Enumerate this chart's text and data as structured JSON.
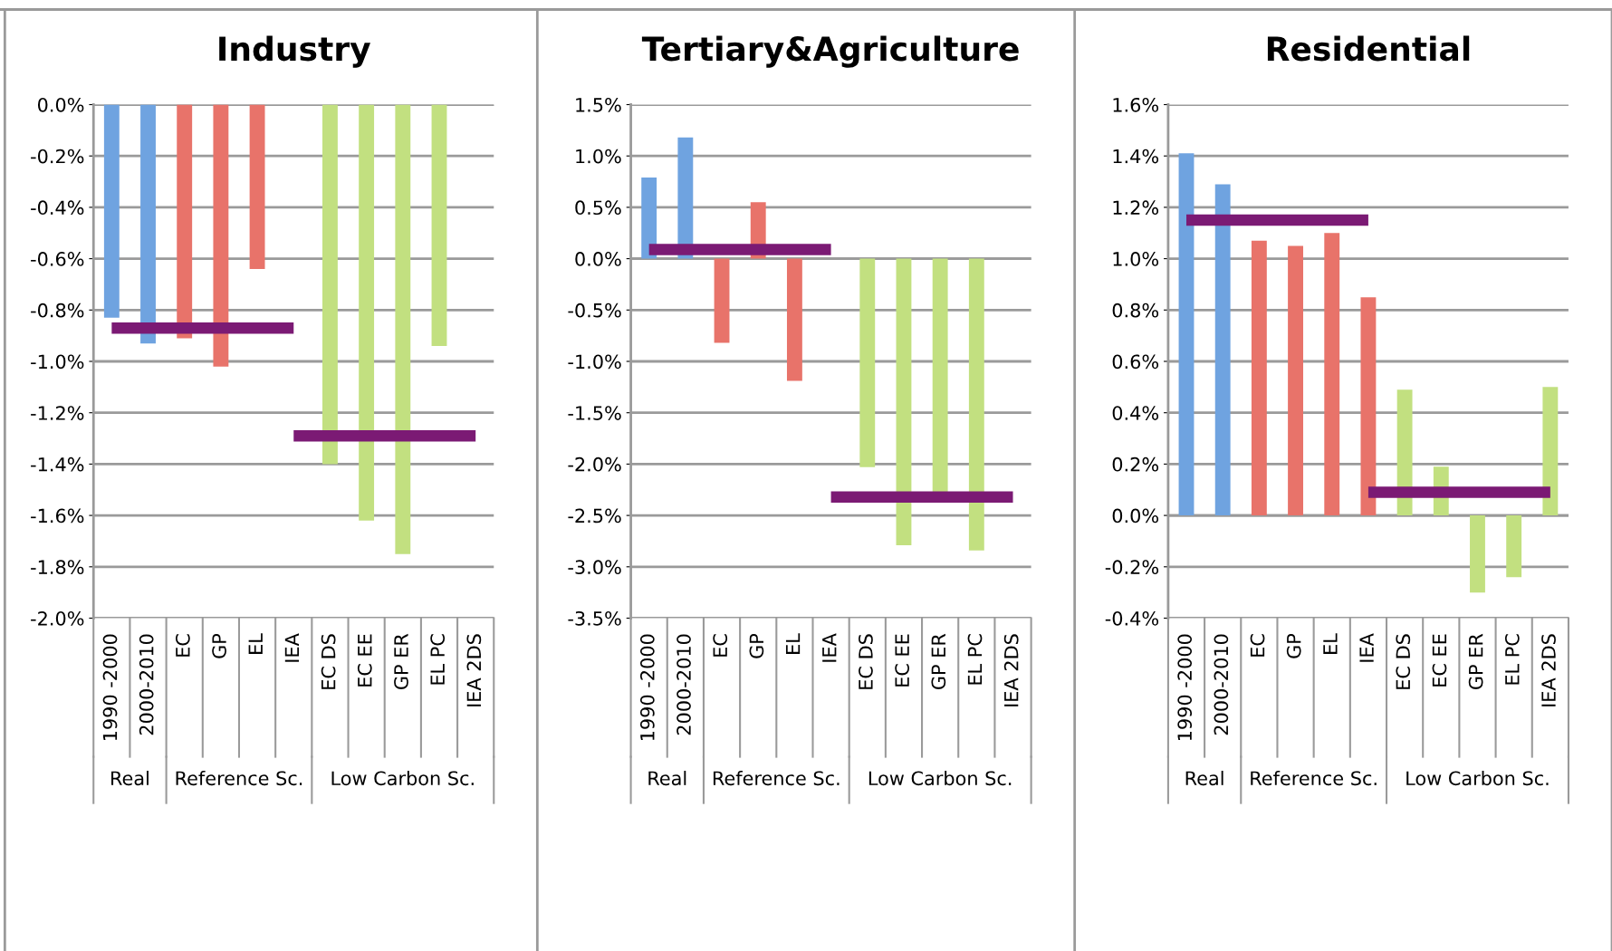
{
  "chart_data": [
    {
      "type": "bar",
      "title": "Industry",
      "categories": [
        "1990 -2000",
        "2000-2010",
        "EC",
        "GP",
        "EL",
        "IEA",
        "EC DS",
        "EC EE",
        "GP ER",
        "EL PC",
        "IEA 2DS"
      ],
      "series": [
        {
          "values": [
            -0.83,
            -0.93,
            -0.91,
            -1.02,
            -0.64,
            0,
            -1.4,
            -1.62,
            -1.75,
            -0.94,
            0
          ],
          "colors": [
            "#6fa3e0",
            "#6fa3e0",
            "#e8736a",
            "#e8736a",
            "#e8736a",
            "#e8736a",
            "#c2e080",
            "#c2e080",
            "#c2e080",
            "#c2e080",
            "#c2e080"
          ]
        },
        {
          "type": "line",
          "color": "#7b1a74",
          "values": [
            -0.87,
            -0.87,
            -0.87,
            -0.87,
            -0.87,
            -0.87,
            null,
            null,
            null,
            null,
            null
          ]
        },
        {
          "type": "line",
          "color": "#7b1a74",
          "values": [
            null,
            null,
            null,
            null,
            null,
            -1.29,
            -1.29,
            -1.29,
            -1.29,
            -1.29,
            -1.29
          ]
        }
      ],
      "ylim": [
        -2.0,
        0
      ],
      "yticks": [
        {
          "value": 0,
          "label": "0.0%"
        },
        {
          "value": -0.2,
          "label": "-0.2%"
        },
        {
          "value": -0.4,
          "label": "-0.4%"
        },
        {
          "value": -0.6,
          "label": "-0.6%"
        },
        {
          "value": -0.8,
          "label": "-0.8%"
        },
        {
          "value": -1.0,
          "label": "-1.0%"
        },
        {
          "value": -1.2,
          "label": "-1.2%"
        },
        {
          "value": -1.4,
          "label": "-1.4%"
        },
        {
          "value": -1.6,
          "label": "-1.6%"
        },
        {
          "value": -1.8,
          "label": "-1.8%"
        },
        {
          "value": -2.0,
          "label": "-2.0%"
        }
      ],
      "grid": "y",
      "annotations": [
        "Real",
        "Reference Sc.",
        "Low Carbon Sc."
      ]
    },
    {
      "type": "bar",
      "title": "Tertiary&Agriculture",
      "categories": [
        "1990 -2000",
        "2000-2010",
        "EC",
        "GP",
        "EL",
        "IEA",
        "EC DS",
        "EC EE",
        "GP ER",
        "EL PC",
        "IEA 2DS"
      ],
      "series": [
        {
          "values": [
            0.79,
            1.18,
            -0.82,
            0.55,
            -1.19,
            0,
            -2.03,
            -2.79,
            -2.28,
            -2.84,
            0
          ],
          "colors": [
            "#6fa3e0",
            "#6fa3e0",
            "#e8736a",
            "#e8736a",
            "#e8736a",
            "#e8736a",
            "#c2e080",
            "#c2e080",
            "#c2e080",
            "#c2e080",
            "#c2e080"
          ]
        },
        {
          "type": "line",
          "color": "#7b1a74",
          "values": [
            0.09,
            0.09,
            0.09,
            0.09,
            0.09,
            0.09,
            null,
            null,
            null,
            null,
            null
          ]
        },
        {
          "type": "line",
          "color": "#7b1a74",
          "values": [
            null,
            null,
            null,
            null,
            null,
            -2.32,
            -2.32,
            -2.32,
            -2.32,
            -2.32,
            -2.32
          ]
        }
      ],
      "ylim": [
        -3.5,
        1.5
      ],
      "yticks": [
        {
          "value": 1.5,
          "label": "1.5%"
        },
        {
          "value": 1.0,
          "label": "1.0%"
        },
        {
          "value": 0.5,
          "label": "0.5%"
        },
        {
          "value": 0,
          "label": "0.0%"
        },
        {
          "value": -0.5,
          "label": "-0.5%"
        },
        {
          "value": -1.0,
          "label": "-1.0%"
        },
        {
          "value": -1.5,
          "label": "-1.5%"
        },
        {
          "value": -2.0,
          "label": "-2.0%"
        },
        {
          "value": -2.5,
          "label": "-2.5%"
        },
        {
          "value": -3.0,
          "label": "-3.0%"
        },
        {
          "value": -3.5,
          "label": "-3.5%"
        }
      ],
      "grid": "y",
      "annotations": [
        "Real",
        "Reference Sc.",
        "Low Carbon Sc."
      ]
    },
    {
      "type": "bar",
      "title": "Residential",
      "categories": [
        "1990 -2000",
        "2000-2010",
        "EC",
        "GP",
        "EL",
        "IEA",
        "EC DS",
        "EC EE",
        "GP ER",
        "EL PC",
        "IEA 2DS"
      ],
      "series": [
        {
          "values": [
            1.41,
            1.29,
            1.07,
            1.05,
            1.1,
            0.85,
            0.49,
            0.19,
            -0.3,
            -0.24,
            0.5
          ],
          "colors": [
            "#6fa3e0",
            "#6fa3e0",
            "#e8736a",
            "#e8736a",
            "#e8736a",
            "#e8736a",
            "#c2e080",
            "#c2e080",
            "#c2e080",
            "#c2e080",
            "#c2e080"
          ]
        },
        {
          "type": "line",
          "color": "#7b1a74",
          "values": [
            1.15,
            1.15,
            1.15,
            1.15,
            1.15,
            1.15,
            null,
            null,
            null,
            null,
            null
          ]
        },
        {
          "type": "line",
          "color": "#7b1a74",
          "values": [
            null,
            null,
            null,
            null,
            null,
            0.09,
            0.09,
            0.09,
            0.09,
            0.09,
            0.09
          ]
        }
      ],
      "ylim": [
        -0.4,
        1.6
      ],
      "yticks": [
        {
          "value": 1.6,
          "label": "1.6%"
        },
        {
          "value": 1.4,
          "label": "1.4%"
        },
        {
          "value": 1.2,
          "label": "1.2%"
        },
        {
          "value": 1.0,
          "label": "1.0%"
        },
        {
          "value": 0.8,
          "label": "0.8%"
        },
        {
          "value": 0.6,
          "label": "0.6%"
        },
        {
          "value": 0.4,
          "label": "0.4%"
        },
        {
          "value": 0.2,
          "label": "0.2%"
        },
        {
          "value": 0,
          "label": "0.0%"
        },
        {
          "value": -0.2,
          "label": "-0.2%"
        },
        {
          "value": -0.4,
          "label": "-0.4%"
        }
      ],
      "grid": "y",
      "annotations": [
        "Real",
        "Reference Sc.",
        "Low Carbon Sc."
      ]
    }
  ]
}
